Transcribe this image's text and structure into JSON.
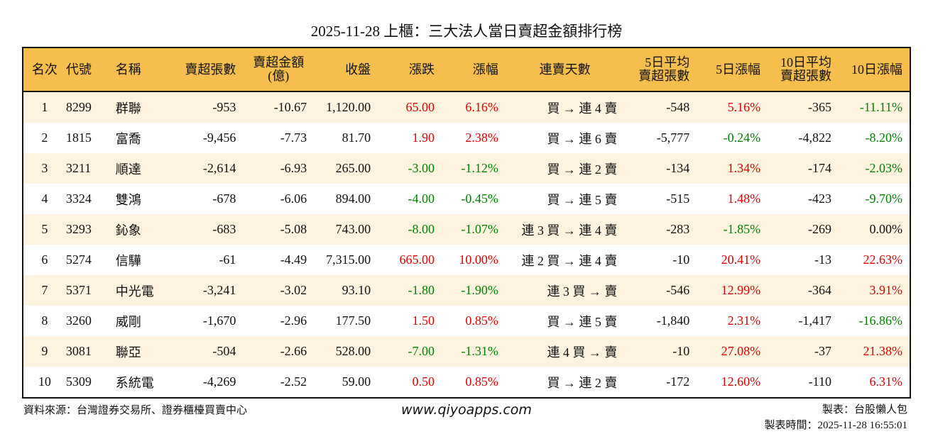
{
  "title": "2025-11-28 上櫃：三大法人當日賣超金額排行榜",
  "headers": [
    "名次",
    "代號",
    "名稱",
    "賣超張數",
    "賣超金額\n(億)",
    "收盤",
    "漲跌",
    "漲幅",
    "連賣天數",
    "5日平均\n賣超張數",
    "5日漲幅",
    "10日平均\n賣超張數",
    "10日漲幅"
  ],
  "rows": [
    [
      "1",
      "8299",
      "群聯",
      "-953",
      "-10.67",
      "1,120.00",
      "65.00",
      "6.16%",
      "買 → 連 4 賣",
      "-548",
      "5.16%",
      "-365",
      "-11.11%"
    ],
    [
      "2",
      "1815",
      "富喬",
      "-9,456",
      "-7.73",
      "81.70",
      "1.90",
      "2.38%",
      "買 → 連 6 賣",
      "-5,777",
      "-0.24%",
      "-4,822",
      "-8.20%"
    ],
    [
      "3",
      "3211",
      "順達",
      "-2,614",
      "-6.93",
      "265.00",
      "-3.00",
      "-1.12%",
      "買 → 連 2 賣",
      "-134",
      "1.34%",
      "-174",
      "-2.03%"
    ],
    [
      "4",
      "3324",
      "雙鴻",
      "-678",
      "-6.06",
      "894.00",
      "-4.00",
      "-0.45%",
      "買 → 連 5 賣",
      "-515",
      "1.48%",
      "-423",
      "-9.70%"
    ],
    [
      "5",
      "3293",
      "鈊象",
      "-683",
      "-5.08",
      "743.00",
      "-8.00",
      "-1.07%",
      "連 3 買 → 連 4 賣",
      "-283",
      "-1.85%",
      "-269",
      "0.00%"
    ],
    [
      "6",
      "5274",
      "信驊",
      "-61",
      "-4.49",
      "7,315.00",
      "665.00",
      "10.00%",
      "連 2 買 → 連 4 賣",
      "-10",
      "20.41%",
      "-13",
      "22.63%"
    ],
    [
      "7",
      "5371",
      "中光電",
      "-3,241",
      "-3.02",
      "93.10",
      "-1.80",
      "-1.90%",
      "連 3 買 → 賣",
      "-546",
      "12.99%",
      "-364",
      "3.91%"
    ],
    [
      "8",
      "3260",
      "威剛",
      "-1,670",
      "-2.96",
      "177.50",
      "1.50",
      "0.85%",
      "買 → 連 5 賣",
      "-1,840",
      "2.31%",
      "-1,417",
      "-16.86%"
    ],
    [
      "9",
      "3081",
      "聯亞",
      "-504",
      "-2.66",
      "528.00",
      "-7.00",
      "-1.31%",
      "連 4 買 → 賣",
      "-10",
      "27.08%",
      "-37",
      "21.38%"
    ],
    [
      "10",
      "5309",
      "系統電",
      "-4,269",
      "-2.52",
      "59.00",
      "0.50",
      "0.85%",
      "買 → 連 2 賣",
      "-172",
      "12.60%",
      "-110",
      "6.31%"
    ]
  ],
  "footer": {
    "source": "資料來源：台灣證券交易所、證券櫃檯買賣中心",
    "site": "www.qiyoapps.com",
    "maker": "製表：台股懶人包",
    "time": "製表時間：2025-11-28 16:55:01"
  },
  "colors": {
    "header_bg": "#F6BF4D",
    "row_alt": "#FDF3DF",
    "up": "#e00000",
    "down": "#008000"
  }
}
